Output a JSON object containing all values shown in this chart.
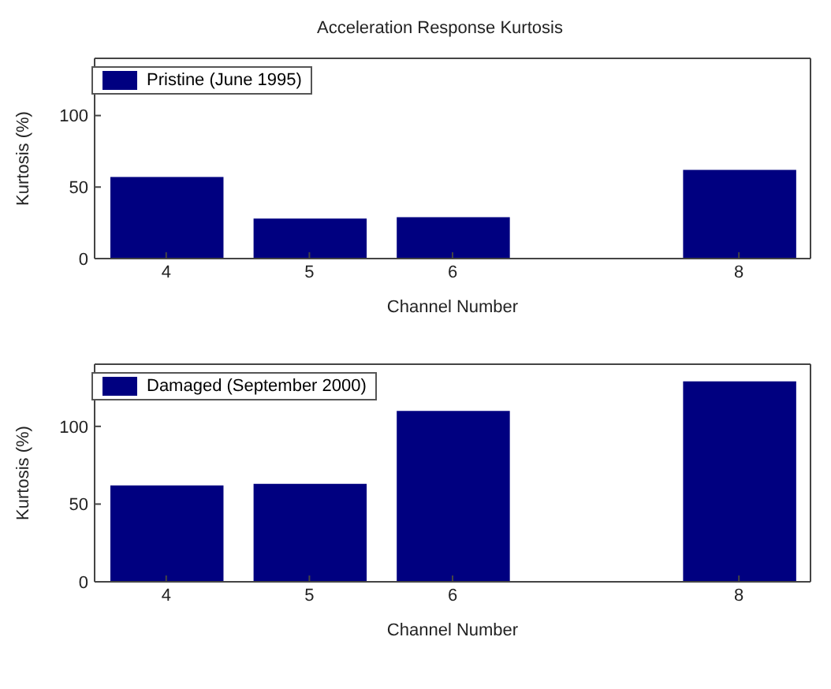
{
  "chart_data": [
    {
      "type": "bar",
      "title": "Acceleration Response Kurtosis",
      "xlabel": "Channel Number",
      "ylabel": "Kurtosis (%)",
      "x": [
        4,
        5,
        6,
        8
      ],
      "xlim": [
        3.5,
        8.5
      ],
      "xticks": [
        4,
        5,
        6,
        8
      ],
      "ylim": [
        0,
        140
      ],
      "yticks": [
        0,
        50,
        100
      ],
      "legend": "top left",
      "series": [
        {
          "name": "Pristine (June 1995)",
          "color": "#000080",
          "values": [
            57,
            28,
            29,
            62
          ]
        }
      ]
    },
    {
      "type": "bar",
      "xlabel": "Channel Number",
      "ylabel": "Kurtosis (%)",
      "x": [
        4,
        5,
        6,
        8
      ],
      "xlim": [
        3.5,
        8.5
      ],
      "xticks": [
        4,
        5,
        6,
        8
      ],
      "ylim": [
        0,
        140
      ],
      "yticks": [
        0,
        50,
        100
      ],
      "legend": "top left",
      "series": [
        {
          "name": "Damaged (September 2000)",
          "color": "#000080",
          "values": [
            62,
            63,
            110,
            129
          ]
        }
      ]
    }
  ]
}
